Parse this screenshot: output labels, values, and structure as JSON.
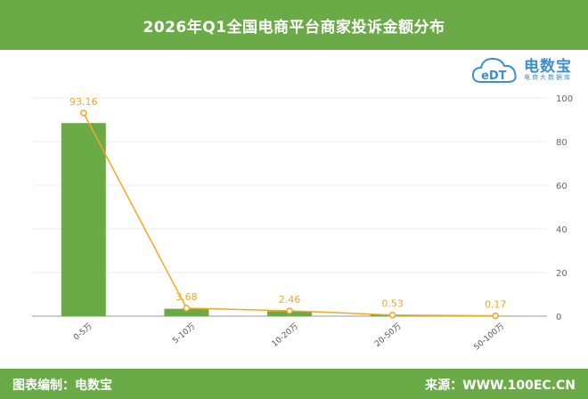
{
  "header": {
    "title": "2026年Q1全国电商平台商家投诉金额分布"
  },
  "logo": {
    "mark": "eDT",
    "name": "电数宝",
    "subtitle": "电商大数据库"
  },
  "footer": {
    "left_text": "图表编制：电数宝",
    "right_text": "来源：WWW.100EC.CN"
  },
  "colors": {
    "bar": "#6aab47",
    "line": "#f5a623",
    "label": "#f5a623",
    "header": "#6aab47"
  },
  "chart_data": {
    "type": "bar",
    "categories": [
      "0-5万",
      "5-10万",
      "10-20万",
      "20-50万",
      "50-100万"
    ],
    "series": [
      {
        "values": [
          88.5,
          3.4,
          2.3,
          0.6,
          0.2
        ]
      },
      {
        "values": [
          93.16,
          3.68,
          2.46,
          0.53,
          0.17
        ]
      }
    ],
    "point_labels": [
      "93.16",
      "3.68",
      "2.46",
      "0.53",
      "0.17"
    ],
    "yticks": [
      "0",
      "20",
      "40",
      "60",
      "80",
      "100"
    ],
    "ylim": [
      0,
      100
    ],
    "y_axis_position": "right",
    "grid": true,
    "legend": "none"
  }
}
